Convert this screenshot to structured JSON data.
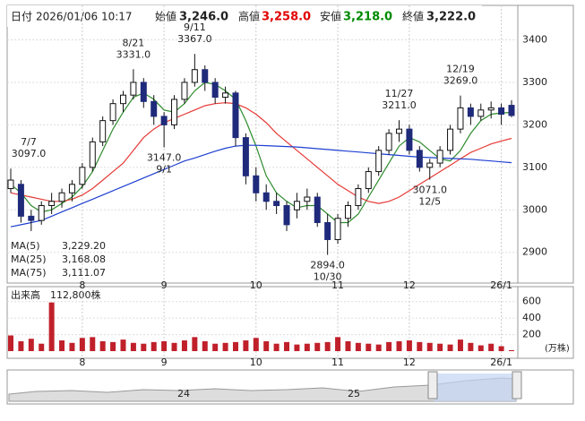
{
  "header": {
    "date_label": "日付",
    "date": "2026/01/06 10:17",
    "open_label": "始値",
    "open": {
      "value": 3246,
      "label": "3,246.0"
    },
    "high_label": "高値",
    "high": {
      "value": 3258,
      "label": "3,258.0"
    },
    "low_label": "安値",
    "low": {
      "value": 3218,
      "label": "3,218.0"
    },
    "close_label": "終値",
    "close": {
      "value": 3222,
      "label": "3,222.0"
    }
  },
  "chart_data": [
    {
      "type": "candlestick",
      "categories": [
        null,
        null,
        null,
        null,
        null,
        null,
        null,
        "8",
        null,
        null,
        null,
        null,
        null,
        null,
        null,
        "9",
        null,
        null,
        null,
        null,
        null,
        null,
        null,
        null,
        "10",
        null,
        null,
        null,
        null,
        null,
        null,
        null,
        "11",
        null,
        null,
        null,
        null,
        null,
        null,
        "12",
        null,
        null,
        null,
        null,
        null,
        null,
        null,
        null,
        "26/1",
        null
      ],
      "open": [
        3050,
        3060,
        2985,
        2975,
        3010,
        3020,
        3040,
        3060,
        3100,
        3160,
        3210,
        3250,
        3270,
        3300,
        3255,
        3220,
        3200,
        3260,
        3300,
        3330,
        3300,
        3265,
        3275,
        3170,
        3080,
        3040,
        3020,
        3010,
        3000,
        3020,
        3030,
        2970,
        2930,
        2980,
        3010,
        3050,
        3090,
        3140,
        3180,
        3190,
        3140,
        3100,
        3110,
        3140,
        3190,
        3240,
        3220,
        3235,
        3240,
        3246
      ],
      "high": [
        3097,
        3070,
        3000,
        3020,
        3040,
        3050,
        3070,
        3110,
        3170,
        3220,
        3260,
        3280,
        3331,
        3310,
        3270,
        3230,
        3270,
        3310,
        3367,
        3340,
        3310,
        3290,
        3280,
        3180,
        3100,
        3060,
        3040,
        3020,
        3040,
        3050,
        3040,
        2990,
        2990,
        3020,
        3060,
        3100,
        3150,
        3190,
        3211,
        3200,
        3150,
        3120,
        3150,
        3200,
        3269,
        3250,
        3250,
        3255,
        3250,
        3258
      ],
      "low": [
        3040,
        2970,
        2950,
        2965,
        2990,
        3005,
        3020,
        3050,
        3090,
        3150,
        3200,
        3230,
        3260,
        3240,
        3200,
        3147,
        3190,
        3250,
        3290,
        3280,
        3250,
        3250,
        3150,
        3060,
        3020,
        3000,
        2990,
        2950,
        2980,
        3000,
        2960,
        2894,
        2920,
        2960,
        3000,
        3040,
        3080,
        3130,
        3160,
        3130,
        3090,
        3071,
        3100,
        3130,
        3180,
        3200,
        3210,
        3215,
        3200,
        3218
      ],
      "close": [
        3070,
        2985,
        2975,
        3010,
        3020,
        3040,
        3060,
        3100,
        3160,
        3210,
        3250,
        3270,
        3300,
        3255,
        3220,
        3200,
        3260,
        3300,
        3330,
        3300,
        3265,
        3275,
        3170,
        3080,
        3040,
        3020,
        3010,
        2965,
        3020,
        3030,
        2970,
        2930,
        2980,
        3010,
        3050,
        3090,
        3140,
        3180,
        3190,
        3140,
        3100,
        3110,
        3140,
        3190,
        3240,
        3220,
        3235,
        3240,
        3225,
        3222
      ],
      "up_color": "#ffffff",
      "down_color": "#1f2a7a",
      "edge_color": "#111111",
      "series": [
        {
          "name": "MA(5)",
          "color": "#2e8b2e",
          "legend_value_label": "3,229.20",
          "values": [
            3060,
            3040,
            3010,
            2995,
            3000,
            3015,
            3030,
            3055,
            3090,
            3140,
            3190,
            3230,
            3265,
            3275,
            3260,
            3235,
            3230,
            3250,
            3280,
            3300,
            3295,
            3280,
            3260,
            3210,
            3150,
            3080,
            3040,
            3020,
            3005,
            3010,
            3010,
            2990,
            2970,
            2970,
            2990,
            3030,
            3070,
            3110,
            3150,
            3170,
            3160,
            3140,
            3120,
            3115,
            3140,
            3180,
            3210,
            3225,
            3228,
            3229.2
          ]
        },
        {
          "name": "MA(25)",
          "color": "#e53935",
          "legend_value_label": "3,168.08",
          "values": [
            3040,
            3035,
            3030,
            3025,
            3020,
            3020,
            3025,
            3035,
            3050,
            3070,
            3090,
            3110,
            3140,
            3170,
            3190,
            3205,
            3215,
            3225,
            3235,
            3245,
            3250,
            3252,
            3250,
            3240,
            3225,
            3205,
            3180,
            3160,
            3140,
            3120,
            3100,
            3080,
            3060,
            3045,
            3030,
            3020,
            3015,
            3020,
            3030,
            3045,
            3060,
            3075,
            3090,
            3105,
            3120,
            3135,
            3145,
            3155,
            3162,
            3168.08
          ]
        },
        {
          "name": "MA(75)",
          "color": "#1e3fd0",
          "legend_value_label": "3,111.07",
          "values": [
            2960,
            2965,
            2970,
            2975,
            2985,
            2995,
            3005,
            3015,
            3025,
            3035,
            3045,
            3055,
            3065,
            3075,
            3085,
            3095,
            3105,
            3115,
            3122,
            3130,
            3138,
            3145,
            3150,
            3152,
            3152,
            3151,
            3150,
            3149,
            3148,
            3146,
            3144,
            3142,
            3140,
            3138,
            3136,
            3134,
            3132,
            3130,
            3128,
            3126,
            3124,
            3123,
            3122,
            3121,
            3120,
            3119,
            3117,
            3115,
            3113,
            3111.07
          ]
        }
      ],
      "annotations": [
        {
          "date": "7/7",
          "value": {
            "value": 3097,
            "label": "3097.0"
          }
        },
        {
          "date": "8/21",
          "value": {
            "value": 3331,
            "label": "3331.0"
          }
        },
        {
          "date": "9/1",
          "value": {
            "value": 3147,
            "label": "3147.0"
          }
        },
        {
          "date": "9/11",
          "value": {
            "value": 3367,
            "label": "3367.0"
          }
        },
        {
          "date": "10/30",
          "value": {
            "value": 2894,
            "label": "2894.0"
          }
        },
        {
          "date": "11/27",
          "value": {
            "value": 3211,
            "label": "3211.0"
          }
        },
        {
          "date": "12/5",
          "value": {
            "value": 3071,
            "label": "3071.0"
          }
        },
        {
          "date": "12/19",
          "value": {
            "value": 3269,
            "label": "3269.0"
          }
        }
      ],
      "ylim": [
        2834,
        3477
      ],
      "yticks": [
        2900,
        3000,
        3100,
        3200,
        3300,
        3400
      ],
      "grid": true
    },
    {
      "type": "bar",
      "title": "出来高",
      "current": {
        "value": 112800,
        "label": "112,800株"
      },
      "unit_label": "(万株)",
      "values": [
        190,
        120,
        150,
        90,
        590,
        130,
        100,
        160,
        170,
        120,
        110,
        140,
        100,
        90,
        110,
        120,
        100,
        130,
        170,
        120,
        90,
        100,
        110,
        130,
        160,
        120,
        90,
        110,
        80,
        90,
        100,
        110,
        170,
        120,
        100,
        90,
        80,
        110,
        120,
        130,
        110,
        100,
        90,
        80,
        140,
        100,
        70,
        90,
        60,
        11.28
      ],
      "color": "#c0202a",
      "ylim": [
        0,
        760
      ],
      "yticks": [
        200,
        400,
        600
      ],
      "grid": true
    }
  ],
  "navigator": {
    "labels": [
      "24",
      "25"
    ]
  }
}
